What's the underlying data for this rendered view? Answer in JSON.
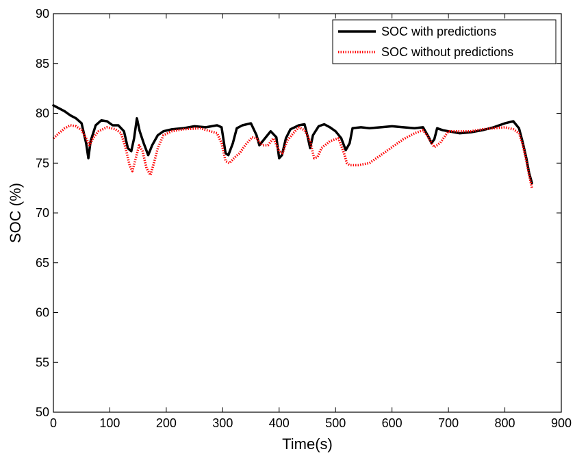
{
  "chart_data": {
    "type": "line",
    "title": "",
    "xlabel": "Time(s)",
    "ylabel": "SOC (%)",
    "xlim": [
      0,
      900
    ],
    "ylim": [
      50,
      90
    ],
    "xticks": [
      0,
      100,
      200,
      300,
      400,
      500,
      600,
      700,
      800,
      900
    ],
    "yticks": [
      50,
      55,
      60,
      65,
      70,
      75,
      80,
      85,
      90
    ],
    "grid": false,
    "legend_position": "top-right",
    "series": [
      {
        "name": "SOC with predictions",
        "color": "#000000",
        "style": "solid",
        "points": [
          [
            0,
            80.8
          ],
          [
            10,
            80.5
          ],
          [
            20,
            80.2
          ],
          [
            30,
            79.8
          ],
          [
            40,
            79.5
          ],
          [
            50,
            79.0
          ],
          [
            58,
            77.0
          ],
          [
            62,
            75.5
          ],
          [
            66,
            77.2
          ],
          [
            75,
            78.8
          ],
          [
            85,
            79.3
          ],
          [
            95,
            79.2
          ],
          [
            105,
            78.8
          ],
          [
            115,
            78.8
          ],
          [
            125,
            78.2
          ],
          [
            132,
            76.5
          ],
          [
            138,
            76.2
          ],
          [
            143,
            77.5
          ],
          [
            148,
            79.5
          ],
          [
            153,
            78.2
          ],
          [
            160,
            77.0
          ],
          [
            168,
            75.8
          ],
          [
            175,
            76.8
          ],
          [
            185,
            77.8
          ],
          [
            195,
            78.2
          ],
          [
            210,
            78.4
          ],
          [
            230,
            78.5
          ],
          [
            250,
            78.7
          ],
          [
            270,
            78.6
          ],
          [
            290,
            78.8
          ],
          [
            298,
            78.6
          ],
          [
            305,
            76.0
          ],
          [
            310,
            75.8
          ],
          [
            318,
            77.0
          ],
          [
            325,
            78.5
          ],
          [
            335,
            78.8
          ],
          [
            350,
            79.0
          ],
          [
            360,
            77.8
          ],
          [
            365,
            76.8
          ],
          [
            375,
            77.5
          ],
          [
            385,
            78.2
          ],
          [
            395,
            77.6
          ],
          [
            400,
            75.5
          ],
          [
            405,
            75.8
          ],
          [
            412,
            77.5
          ],
          [
            420,
            78.4
          ],
          [
            435,
            78.8
          ],
          [
            445,
            78.9
          ],
          [
            450,
            77.8
          ],
          [
            455,
            76.5
          ],
          [
            460,
            77.8
          ],
          [
            470,
            78.7
          ],
          [
            480,
            78.9
          ],
          [
            490,
            78.6
          ],
          [
            500,
            78.2
          ],
          [
            510,
            77.5
          ],
          [
            518,
            76.3
          ],
          [
            525,
            77.0
          ],
          [
            530,
            78.5
          ],
          [
            545,
            78.6
          ],
          [
            560,
            78.5
          ],
          [
            580,
            78.6
          ],
          [
            600,
            78.7
          ],
          [
            620,
            78.6
          ],
          [
            640,
            78.5
          ],
          [
            655,
            78.6
          ],
          [
            665,
            77.6
          ],
          [
            670,
            77.0
          ],
          [
            675,
            77.4
          ],
          [
            680,
            78.5
          ],
          [
            690,
            78.3
          ],
          [
            700,
            78.2
          ],
          [
            720,
            78.0
          ],
          [
            740,
            78.1
          ],
          [
            760,
            78.3
          ],
          [
            780,
            78.6
          ],
          [
            800,
            79.0
          ],
          [
            815,
            79.2
          ],
          [
            825,
            78.5
          ],
          [
            832,
            77.0
          ],
          [
            838,
            75.5
          ],
          [
            843,
            74.0
          ],
          [
            848,
            73.0
          ]
        ]
      },
      {
        "name": "SOC without predictions",
        "color": "#ff0000",
        "style": "dotted",
        "points": [
          [
            0,
            77.5
          ],
          [
            10,
            78.0
          ],
          [
            20,
            78.5
          ],
          [
            30,
            78.8
          ],
          [
            40,
            78.7
          ],
          [
            50,
            78.3
          ],
          [
            58,
            77.5
          ],
          [
            64,
            76.8
          ],
          [
            70,
            77.5
          ],
          [
            80,
            78.2
          ],
          [
            95,
            78.6
          ],
          [
            110,
            78.4
          ],
          [
            120,
            78.0
          ],
          [
            128,
            76.5
          ],
          [
            135,
            74.8
          ],
          [
            140,
            74.2
          ],
          [
            146,
            75.5
          ],
          [
            152,
            76.8
          ],
          [
            158,
            76.2
          ],
          [
            165,
            74.5
          ],
          [
            172,
            73.8
          ],
          [
            178,
            75.0
          ],
          [
            185,
            76.5
          ],
          [
            195,
            77.8
          ],
          [
            210,
            78.2
          ],
          [
            230,
            78.4
          ],
          [
            260,
            78.5
          ],
          [
            290,
            78.0
          ],
          [
            298,
            77.0
          ],
          [
            305,
            75.2
          ],
          [
            312,
            75.0
          ],
          [
            320,
            75.5
          ],
          [
            330,
            76.0
          ],
          [
            340,
            76.8
          ],
          [
            352,
            77.6
          ],
          [
            360,
            77.5
          ],
          [
            370,
            76.8
          ],
          [
            380,
            76.8
          ],
          [
            390,
            77.5
          ],
          [
            400,
            76.2
          ],
          [
            406,
            76.0
          ],
          [
            415,
            77.3
          ],
          [
            425,
            78.0
          ],
          [
            435,
            78.6
          ],
          [
            445,
            78.3
          ],
          [
            455,
            77.2
          ],
          [
            462,
            75.5
          ],
          [
            468,
            75.6
          ],
          [
            475,
            76.5
          ],
          [
            490,
            77.2
          ],
          [
            505,
            77.5
          ],
          [
            515,
            76.0
          ],
          [
            520,
            75.0
          ],
          [
            525,
            74.8
          ],
          [
            540,
            74.8
          ],
          [
            560,
            75.0
          ],
          [
            580,
            75.8
          ],
          [
            600,
            76.6
          ],
          [
            620,
            77.4
          ],
          [
            640,
            78.0
          ],
          [
            655,
            78.3
          ],
          [
            662,
            77.8
          ],
          [
            668,
            77.2
          ],
          [
            675,
            76.6
          ],
          [
            685,
            77.0
          ],
          [
            700,
            78.2
          ],
          [
            720,
            78.2
          ],
          [
            740,
            78.2
          ],
          [
            760,
            78.4
          ],
          [
            780,
            78.5
          ],
          [
            800,
            78.6
          ],
          [
            815,
            78.4
          ],
          [
            825,
            78.0
          ],
          [
            832,
            76.8
          ],
          [
            838,
            75.2
          ],
          [
            843,
            73.8
          ],
          [
            848,
            72.5
          ]
        ]
      }
    ]
  }
}
